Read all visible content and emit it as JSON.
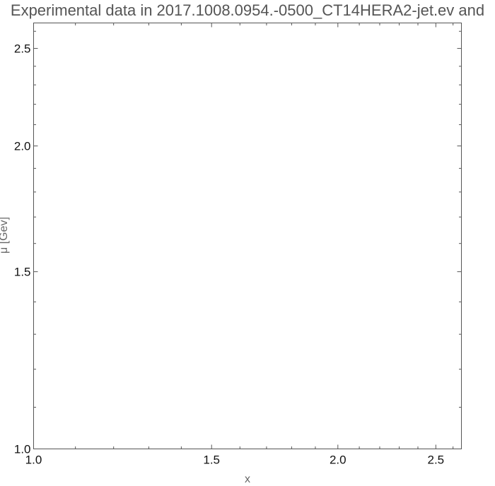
{
  "chart_data": {
    "type": "scatter",
    "title": "Experimental data in 2017.1008.0954.-0500_CT14HERA2-jet.ev and",
    "xlabel": "x",
    "ylabel": "μ [Gev]",
    "x_scale": "log",
    "y_scale": "log",
    "xlim": [
      1.0,
      2.65
    ],
    "ylim": [
      1.0,
      2.65
    ],
    "x_major_ticks": [
      1.0,
      1.5,
      2.0,
      2.5
    ],
    "x_tick_labels": [
      "1.0",
      "1.5",
      "2.0",
      "2.5"
    ],
    "y_major_ticks": [
      1.0,
      1.5,
      2.0,
      2.5
    ],
    "y_tick_labels": [
      "1.0",
      "1.5",
      "2.0",
      "2.5"
    ],
    "x_minor_ticks": [
      1.1,
      1.2,
      1.3,
      1.4,
      1.6,
      1.7,
      1.8,
      1.9,
      2.1,
      2.2,
      2.3,
      2.4,
      2.6
    ],
    "y_minor_ticks": [
      1.1,
      1.2,
      1.3,
      1.4,
      1.6,
      1.7,
      1.8,
      1.9,
      2.1,
      2.2,
      2.3,
      2.4,
      2.6
    ],
    "series": [],
    "grid": false
  }
}
